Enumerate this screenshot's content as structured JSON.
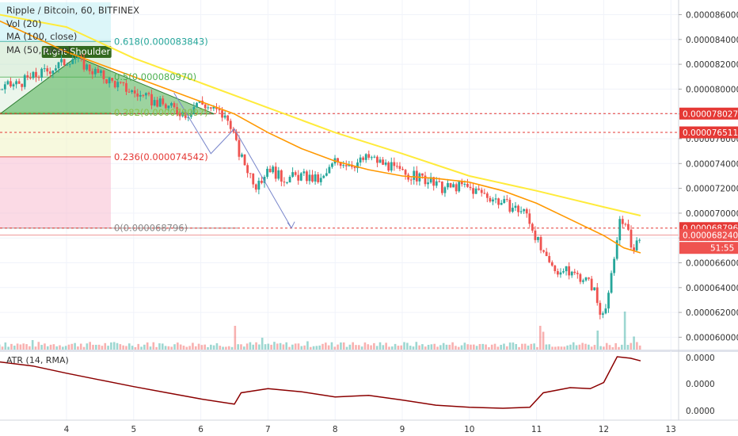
{
  "header": {
    "title": "Ripple / Bitcoin, 60, BITFINEX",
    "indicators": [
      "Vol (20)",
      "MA (100, close)",
      "MA (50, close)"
    ]
  },
  "atr_label": "ATR (14, RMA)",
  "annotation": "Right Shoulder",
  "fib_labels": [
    {
      "ratio": "0.618",
      "value": "0.000083843",
      "price": 8.3843e-05,
      "color": "#26a69a"
    },
    {
      "ratio": "0.5",
      "value": "0.000080970",
      "price": 8.097e-05,
      "color": "#4caf50"
    },
    {
      "ratio": "0.382",
      "value": "0.000078097",
      "price": 7.8097e-05,
      "color": "#8bc34a"
    },
    {
      "ratio": "0.236",
      "value": "0.000074542",
      "price": 7.4542e-05,
      "color": "#e53935"
    },
    {
      "ratio": "0",
      "value": "0.000068796",
      "price": 6.8796e-05,
      "color": "#888888"
    }
  ],
  "price_tags": [
    {
      "label": "0.000078027",
      "price": 7.8027e-05,
      "color": "#e53935"
    },
    {
      "label": "0.000076511",
      "price": 7.6511e-05,
      "color": "#e53935"
    },
    {
      "label": "0.000068796",
      "price": 6.8796e-05,
      "color": "#e53935"
    },
    {
      "label": "0.000068240",
      "price": 6.824e-05,
      "color": "#ef5350"
    },
    {
      "label": "51:55",
      "price": 6.72e-05,
      "color": "#ef5350"
    }
  ],
  "colors": {
    "up": "#26a69a",
    "down": "#ef5350",
    "ma100": "#ffeb3b",
    "ma50": "#ff9800",
    "atr": "#8b0000"
  },
  "chart_data": {
    "type": "candlestick",
    "title": "Ripple / Bitcoin, 60, BITFINEX",
    "x_ticks": [
      "4",
      "5",
      "6",
      "7",
      "8",
      "9",
      "10",
      "11",
      "12",
      "13"
    ],
    "x_tick_values": [
      4,
      5,
      6,
      7,
      8,
      9,
      10,
      11,
      12,
      13
    ],
    "xlim": [
      3.0,
      13.0
    ],
    "y_ticks": [
      "0.000086000",
      "0.000084000",
      "0.000082000",
      "0.000080000",
      "0.000078000",
      "0.000076000",
      "0.000074000",
      "0.000072000",
      "0.000070000",
      "0.000068000",
      "0.000066000",
      "0.000064000",
      "0.000062000",
      "0.000060000"
    ],
    "y_tick_values": [
      8.6e-05,
      8.4e-05,
      8.2e-05,
      8e-05,
      7.8e-05,
      7.6e-05,
      7.4e-05,
      7.2e-05,
      7e-05,
      6.8e-05,
      6.6e-05,
      6.4e-05,
      6.2e-05,
      6e-05
    ],
    "ylim": [
      5.94e-05,
      8.71e-05
    ],
    "atr_ticks": [
      "0.0000",
      "0.0000",
      "0.0000"
    ],
    "price_path": [
      [
        3.0,
        8e-05
      ],
      [
        3.3,
        8.05e-05
      ],
      [
        3.6,
        8.12e-05
      ],
      [
        3.9,
        8.2e-05
      ],
      [
        4.1,
        8.26e-05
      ],
      [
        4.3,
        8.18e-05
      ],
      [
        4.6,
        8.08e-05
      ],
      [
        4.9,
        8e-05
      ],
      [
        5.2,
        7.92e-05
      ],
      [
        5.5,
        7.86e-05
      ],
      [
        5.8,
        7.8e-05
      ],
      [
        5.95,
        7.9e-05
      ],
      [
        6.1,
        7.86e-05
      ],
      [
        6.3,
        7.8e-05
      ],
      [
        6.45,
        7.72e-05
      ],
      [
        6.55,
        7.5e-05
      ],
      [
        6.7,
        7.35e-05
      ],
      [
        6.85,
        7.2e-05
      ],
      [
        7.0,
        7.38e-05
      ],
      [
        7.2,
        7.28e-05
      ],
      [
        7.5,
        7.3e-05
      ],
      [
        7.8,
        7.26e-05
      ],
      [
        8.0,
        7.42e-05
      ],
      [
        8.3,
        7.4e-05
      ],
      [
        8.5,
        7.45e-05
      ],
      [
        8.8,
        7.38e-05
      ],
      [
        9.0,
        7.32e-05
      ],
      [
        9.3,
        7.28e-05
      ],
      [
        9.6,
        7.2e-05
      ],
      [
        9.9,
        7.22e-05
      ],
      [
        10.2,
        7.16e-05
      ],
      [
        10.5,
        7.08e-05
      ],
      [
        10.85,
        7e-05
      ],
      [
        11.0,
        6.8e-05
      ],
      [
        11.1,
        6.65e-05
      ],
      [
        11.25,
        6.55e-05
      ],
      [
        11.5,
        6.52e-05
      ],
      [
        11.7,
        6.48e-05
      ],
      [
        11.85,
        6.4e-05
      ],
      [
        11.95,
        6.18e-05
      ],
      [
        12.05,
        6.3e-05
      ],
      [
        12.15,
        6.58e-05
      ],
      [
        12.25,
        7e-05
      ],
      [
        12.35,
        6.85e-05
      ],
      [
        12.45,
        6.7e-05
      ],
      [
        12.55,
        6.85e-05
      ]
    ],
    "ma100": [
      [
        3.0,
        8.6e-05
      ],
      [
        4.0,
        8.5e-05
      ],
      [
        5.0,
        8.25e-05
      ],
      [
        6.0,
        8.05e-05
      ],
      [
        7.0,
        7.85e-05
      ],
      [
        8.0,
        7.65e-05
      ],
      [
        9.0,
        7.48e-05
      ],
      [
        10.0,
        7.3e-05
      ],
      [
        11.0,
        7.18e-05
      ],
      [
        12.0,
        7.05e-05
      ],
      [
        12.55,
        6.98e-05
      ]
    ],
    "ma50": [
      [
        3.0,
        8.55e-05
      ],
      [
        4.0,
        8.3e-05
      ],
      [
        5.0,
        8.1e-05
      ],
      [
        6.0,
        7.9e-05
      ],
      [
        6.5,
        7.8e-05
      ],
      [
        7.0,
        7.65e-05
      ],
      [
        7.5,
        7.52e-05
      ],
      [
        8.0,
        7.42e-05
      ],
      [
        8.5,
        7.35e-05
      ],
      [
        9.0,
        7.3e-05
      ],
      [
        9.5,
        7.28e-05
      ],
      [
        10.0,
        7.25e-05
      ],
      [
        10.5,
        7.18e-05
      ],
      [
        11.0,
        7.08e-05
      ],
      [
        11.5,
        6.95e-05
      ],
      [
        12.0,
        6.82e-05
      ],
      [
        12.3,
        6.72e-05
      ],
      [
        12.55,
        6.68e-05
      ]
    ],
    "atr_path": [
      [
        3.0,
        0.9
      ],
      [
        3.5,
        0.82
      ],
      [
        4.0,
        0.68
      ],
      [
        4.5,
        0.55
      ],
      [
        5.0,
        0.42
      ],
      [
        5.5,
        0.3
      ],
      [
        6.0,
        0.18
      ],
      [
        6.5,
        0.08
      ],
      [
        6.6,
        0.3
      ],
      [
        7.0,
        0.38
      ],
      [
        7.5,
        0.32
      ],
      [
        8.0,
        0.22
      ],
      [
        8.5,
        0.25
      ],
      [
        9.0,
        0.16
      ],
      [
        9.5,
        0.06
      ],
      [
        10.0,
        0.02
      ],
      [
        10.5,
        0.0
      ],
      [
        10.9,
        0.02
      ],
      [
        11.1,
        0.3
      ],
      [
        11.5,
        0.4
      ],
      [
        11.8,
        0.38
      ],
      [
        12.0,
        0.5
      ],
      [
        12.2,
        1.0
      ],
      [
        12.4,
        0.97
      ],
      [
        12.55,
        0.92
      ]
    ],
    "volume_spikes": [
      [
        3.1,
        0.3
      ],
      [
        3.5,
        0.4
      ],
      [
        4.2,
        0.25
      ],
      [
        5.2,
        0.3
      ],
      [
        6.5,
        1.0
      ],
      [
        6.9,
        0.5
      ],
      [
        7.6,
        0.35
      ],
      [
        8.1,
        0.3
      ],
      [
        9.4,
        0.2
      ],
      [
        10.5,
        0.25
      ],
      [
        11.05,
        1.0
      ],
      [
        11.1,
        0.75
      ],
      [
        11.9,
        0.8
      ],
      [
        12.3,
        1.6
      ],
      [
        12.45,
        0.55
      ]
    ]
  }
}
